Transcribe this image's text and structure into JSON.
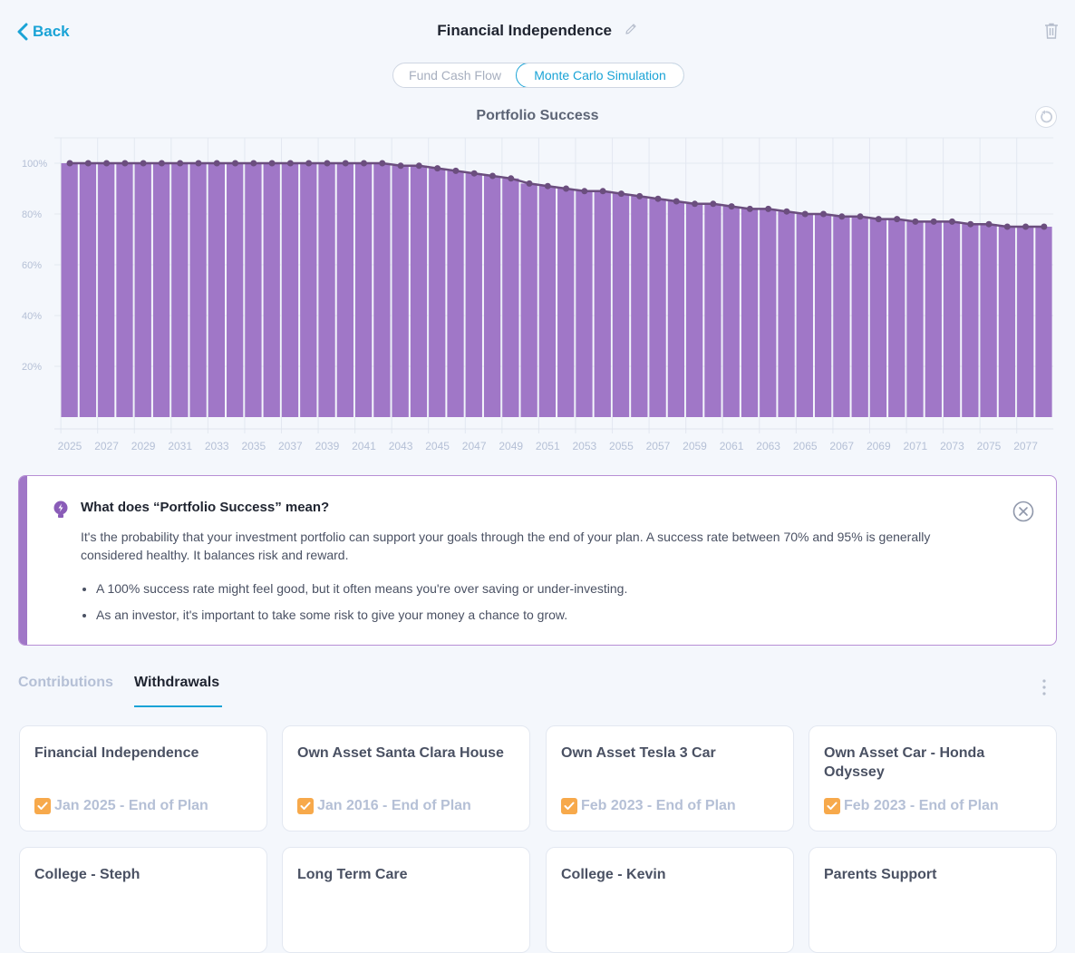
{
  "header": {
    "back_label": "Back",
    "title": "Financial Independence"
  },
  "view_toggle": {
    "options": [
      "Fund Cash Flow",
      "Monte Carlo Simulation"
    ],
    "selected": "Monte Carlo Simulation"
  },
  "chart_title": "Portfolio Success",
  "chart_data": {
    "type": "bar",
    "title": "Portfolio Success",
    "bar_color": "#a077c7",
    "line_color": "#6b4e7e",
    "x": [
      2025,
      2026,
      2027,
      2028,
      2029,
      2030,
      2031,
      2032,
      2033,
      2034,
      2035,
      2036,
      2037,
      2038,
      2039,
      2040,
      2041,
      2042,
      2043,
      2044,
      2045,
      2046,
      2047,
      2048,
      2049,
      2050,
      2051,
      2052,
      2053,
      2054,
      2055,
      2056,
      2057,
      2058,
      2059,
      2060,
      2061,
      2062,
      2063,
      2064,
      2065,
      2066,
      2067,
      2068,
      2069,
      2070,
      2071,
      2072,
      2073,
      2074,
      2075,
      2076,
      2077,
      2078
    ],
    "values": [
      100,
      100,
      100,
      100,
      100,
      100,
      100,
      100,
      100,
      100,
      100,
      100,
      100,
      100,
      100,
      100,
      100,
      100,
      99,
      99,
      98,
      97,
      96,
      95,
      94,
      92,
      91,
      90,
      89,
      89,
      88,
      87,
      86,
      85,
      84,
      84,
      83,
      82,
      82,
      81,
      80,
      80,
      79,
      79,
      78,
      78,
      77,
      77,
      77,
      76,
      76,
      75,
      75,
      75
    ],
    "x_tick_labels": [
      "2025",
      "2027",
      "2029",
      "2031",
      "2033",
      "2035",
      "2037",
      "2039",
      "2041",
      "2043",
      "2045",
      "2047",
      "2049",
      "2051",
      "2053",
      "2055",
      "2057",
      "2059",
      "2061",
      "2063",
      "2065",
      "2067",
      "2069",
      "2071",
      "2073",
      "2075",
      "2077"
    ],
    "y_tick_labels": [
      "100%",
      "80%",
      "60%",
      "40%",
      "20%"
    ],
    "y_ticks": [
      100,
      80,
      60,
      40,
      20
    ],
    "ylim": [
      0,
      100
    ],
    "grid": true
  },
  "info": {
    "title": "What does “Portfolio Success” mean?",
    "body": "It's the probability that your investment portfolio can support your goals through the end of your plan. A success rate between 70% and 95% is generally considered healthy. It balances risk and reward.",
    "bullets": [
      "A 100% success rate might feel good, but it often means you're over saving or under-investing.",
      "As an investor, it's important to take some risk to give your money a chance to grow."
    ]
  },
  "tabs": {
    "contributions": "Contributions",
    "withdrawals": "Withdrawals",
    "active": "Withdrawals"
  },
  "cards": [
    {
      "title": "Financial Independence",
      "date": "Jan 2025 - End of Plan"
    },
    {
      "title": "Own Asset Santa Clara House",
      "date": "Jan 2016 - End of Plan"
    },
    {
      "title": "Own Asset Tesla 3 Car",
      "date": "Feb 2023 - End of Plan"
    },
    {
      "title": "Own Asset Car - Honda Odyssey",
      "date": "Feb 2023 - End of Plan"
    },
    {
      "title": "College - Steph",
      "date": ""
    },
    {
      "title": "Long Term Care",
      "date": ""
    },
    {
      "title": "College - Kevin",
      "date": ""
    },
    {
      "title": "Parents Support",
      "date": ""
    }
  ],
  "colors": {
    "accent": "#1aa3d6",
    "bar": "#a077c7",
    "checkbox": "#f7a94b"
  }
}
